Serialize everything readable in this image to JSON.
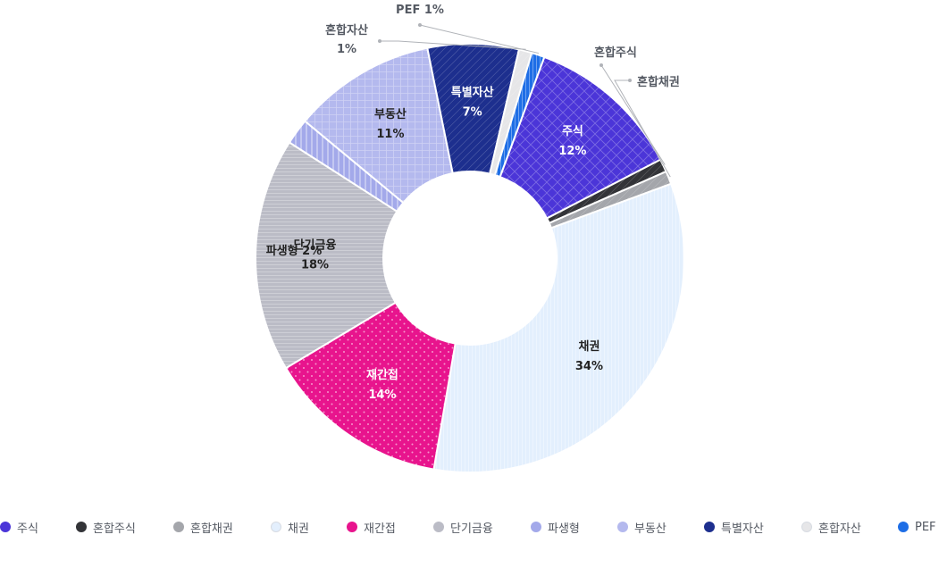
{
  "chart_data": {
    "type": "pie",
    "donut": true,
    "legend_position": "bottom",
    "categories": [
      "주식",
      "혼합주식",
      "혼합채권",
      "채권",
      "재간접",
      "단기금융",
      "파생형",
      "부동산",
      "특별자산",
      "혼합자산",
      "PEF"
    ],
    "values": [
      12,
      1,
      1,
      34,
      14,
      18,
      2,
      11,
      7,
      1,
      1
    ],
    "slices": [
      {
        "name": "주식",
        "value": 12,
        "label": "주식",
        "pct": "12%",
        "color": "#4b35d8",
        "pattern": "diamond",
        "text_color": "#ffffff",
        "label_inside": true
      },
      {
        "name": "혼합주식",
        "value": 1,
        "label": "혼합주식",
        "pct": "",
        "color": "#333438",
        "pattern": "diag",
        "text_color": "#555a63",
        "label_inside": false
      },
      {
        "name": "혼합채권",
        "value": 1,
        "label": "혼합채권",
        "pct": "",
        "color": "#a4a6ab",
        "pattern": "diag",
        "text_color": "#555a63",
        "label_inside": false
      },
      {
        "name": "채권",
        "value": 34,
        "label": "채권",
        "pct": "34%",
        "color": "#e3effd",
        "pattern": "vline",
        "text_color": "#222222",
        "label_inside": true
      },
      {
        "name": "재간접",
        "value": 14,
        "label": "재간접",
        "pct": "14%",
        "color": "#e8148d",
        "pattern": "dots",
        "text_color": "#ffffff",
        "label_inside": true
      },
      {
        "name": "단기금융",
        "value": 18,
        "label": "단기금융",
        "pct": "18%",
        "color": "#bbbcc6",
        "pattern": "hline",
        "text_color": "#222222",
        "label_inside": true
      },
      {
        "name": "파생형",
        "value": 2,
        "label": "파생형 2%",
        "pct": "",
        "color": "#a3a9ea",
        "pattern": "vstripe",
        "text_color": "#222222",
        "label_inside": true
      },
      {
        "name": "부동산",
        "value": 11,
        "label": "부동산",
        "pct": "11%",
        "color": "#b4b9ee",
        "pattern": "grid",
        "text_color": "#222222",
        "label_inside": true
      },
      {
        "name": "특별자산",
        "value": 7,
        "label": "특별자산",
        "pct": "7%",
        "color": "#1d2f8e",
        "pattern": "diag",
        "text_color": "#ffffff",
        "label_inside": true
      },
      {
        "name": "혼합자산",
        "value": 1,
        "label": "혼합자산",
        "pct": "1%",
        "color": "#e6e6e8",
        "pattern": "diag",
        "text_color": "#555a63",
        "label_inside": false
      },
      {
        "name": "PEF",
        "value": 1,
        "label": "PEF 1%",
        "pct": "",
        "color": "#1e6ee6",
        "pattern": "vline",
        "text_color": "#555a63",
        "label_inside": false
      }
    ]
  },
  "legend": {
    "items": [
      {
        "label": "주식",
        "color": "#4b35d8"
      },
      {
        "label": "혼합주식",
        "color": "#333438"
      },
      {
        "label": "혼합채권",
        "color": "#a4a6ab"
      },
      {
        "label": "채권",
        "color": "#e3effd"
      },
      {
        "label": "재간접",
        "color": "#e8148d"
      },
      {
        "label": "단기금융",
        "color": "#bbbcc6"
      },
      {
        "label": "파생형",
        "color": "#a3a9ea"
      },
      {
        "label": "부동산",
        "color": "#b4b9ee"
      },
      {
        "label": "특별자산",
        "color": "#1d2f8e"
      },
      {
        "label": "혼합자산",
        "color": "#e6e6e8"
      },
      {
        "label": "PEF",
        "color": "#1e6ee6"
      }
    ]
  }
}
